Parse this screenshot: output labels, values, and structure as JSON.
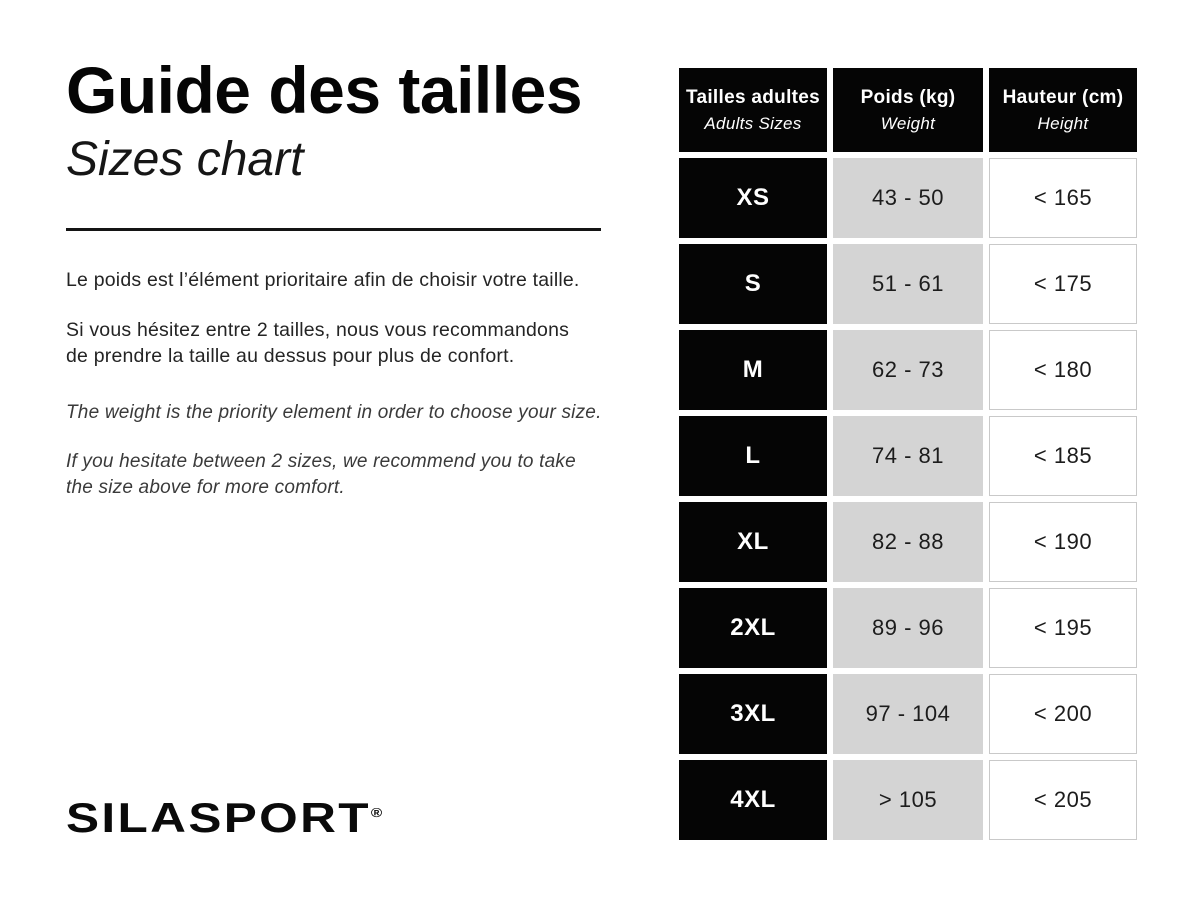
{
  "header": {
    "title_fr": "Guide des tailles",
    "title_en": "Sizes chart"
  },
  "intro": {
    "fr_weight": "Le poids est l’élément prioritaire afin de choisir votre taille.",
    "fr_hesitate": "Si vous hésitez entre 2 tailles, nous vous recommandons\nde prendre la taille au dessus pour plus de confort.",
    "en_weight": "The weight is the priority element in order to choose your size.",
    "en_hesitate": "If you hesitate between 2 sizes, we recommend you to take\nthe size above for more comfort."
  },
  "brand": {
    "name": "SILASPORT",
    "reg": "®"
  },
  "chart_data": {
    "type": "table",
    "title": "Guide des tailles / Sizes chart",
    "columns": [
      {
        "label_fr": "Tailles adultes",
        "label_en": "Adults Sizes"
      },
      {
        "label_fr": "Poids (kg)",
        "label_en": "Weight"
      },
      {
        "label_fr": "Hauteur (cm)",
        "label_en": "Height"
      }
    ],
    "rows": [
      {
        "size": "XS",
        "weight_kg": "43 - 50",
        "height_cm": "< 165"
      },
      {
        "size": "S",
        "weight_kg": "51 - 61",
        "height_cm": "< 175"
      },
      {
        "size": "M",
        "weight_kg": "62 - 73",
        "height_cm": "< 180"
      },
      {
        "size": "L",
        "weight_kg": "74 - 81",
        "height_cm": "< 185"
      },
      {
        "size": "XL",
        "weight_kg": "82 - 88",
        "height_cm": "< 190"
      },
      {
        "size": "2XL",
        "weight_kg": "89 - 96",
        "height_cm": "< 195"
      },
      {
        "size": "3XL",
        "weight_kg": "97 - 104",
        "height_cm": "< 200"
      },
      {
        "size": "4XL",
        "weight_kg": "> 105",
        "height_cm": "< 205"
      }
    ]
  },
  "colors": {
    "cell_black": "#050505",
    "cell_gray": "#d4d4d4",
    "cell_white_border": "#c9c9c9",
    "text_dark": "#1c1c1c",
    "background": "#ffffff"
  }
}
